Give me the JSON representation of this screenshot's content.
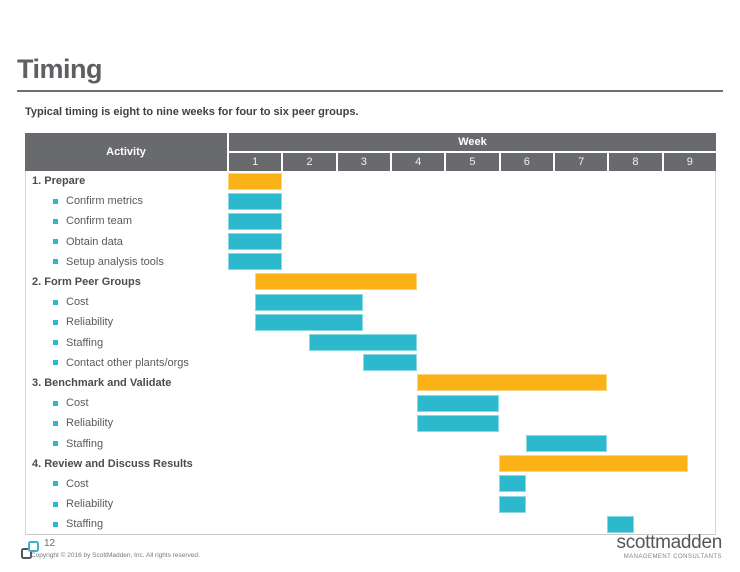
{
  "slide": {
    "title": "Timing",
    "subtitle": "Typical timing is eight to nine weeks for four to six peer groups."
  },
  "table": {
    "activity_header": "Activity",
    "week_header": "Week",
    "week_numbers": [
      "1",
      "2",
      "3",
      "4",
      "5",
      "6",
      "7",
      "8",
      "9"
    ]
  },
  "chart_data": {
    "type": "gantt",
    "unit": "weeks",
    "axis_label": "Week",
    "week_count": 9,
    "rows": [
      {
        "label": "1. Prepare",
        "level": "section",
        "start": 0,
        "end": 1,
        "color": "orange"
      },
      {
        "label": "Confirm metrics",
        "level": "task",
        "start": 0,
        "end": 1,
        "color": "teal"
      },
      {
        "label": "Confirm team",
        "level": "task",
        "start": 0,
        "end": 1,
        "color": "teal"
      },
      {
        "label": "Obtain data",
        "level": "task",
        "start": 0,
        "end": 1,
        "color": "teal"
      },
      {
        "label": "Setup analysis tools",
        "level": "task",
        "start": 0,
        "end": 1,
        "color": "teal"
      },
      {
        "label": "2. Form Peer Groups",
        "level": "section",
        "start": 0.5,
        "end": 3.5,
        "color": "orange"
      },
      {
        "label": "Cost",
        "level": "task",
        "start": 0.5,
        "end": 2.5,
        "color": "teal"
      },
      {
        "label": "Reliability",
        "level": "task",
        "start": 0.5,
        "end": 2.5,
        "color": "teal"
      },
      {
        "label": "Staffing",
        "level": "task",
        "start": 1.5,
        "end": 3.5,
        "color": "teal"
      },
      {
        "label": "Contact other plants/orgs",
        "level": "task",
        "start": 2.5,
        "end": 3.5,
        "color": "teal"
      },
      {
        "label": "3. Benchmark and Validate",
        "level": "section",
        "start": 3.5,
        "end": 7,
        "color": "orange"
      },
      {
        "label": "Cost",
        "level": "task",
        "start": 3.5,
        "end": 5,
        "color": "teal"
      },
      {
        "label": "Reliability",
        "level": "task",
        "start": 3.5,
        "end": 5,
        "color": "teal"
      },
      {
        "label": "Staffing",
        "level": "task",
        "start": 5.5,
        "end": 7,
        "color": "teal"
      },
      {
        "label": "4. Review and Discuss Results",
        "level": "section",
        "start": 5,
        "end": 8.5,
        "color": "orange"
      },
      {
        "label": "Cost",
        "level": "task",
        "start": 5,
        "end": 5.5,
        "color": "teal"
      },
      {
        "label": "Reliability",
        "level": "task",
        "start": 5,
        "end": 5.5,
        "color": "teal"
      },
      {
        "label": "Staffing",
        "level": "task",
        "start": 7,
        "end": 7.5,
        "color": "teal"
      }
    ]
  },
  "colors": {
    "orange": "#FBB216",
    "teal": "#2DB9CD",
    "header_gray": "#696A6E",
    "brand_teal": "#3EB1C8"
  },
  "footer": {
    "page_number": "12",
    "copyright": "Copyright © 2016 by ScottMadden, Inc. All rights reserved.",
    "brand_name": "scottmadden",
    "brand_subtitle": "MANAGEMENT CONSULTANTS"
  }
}
